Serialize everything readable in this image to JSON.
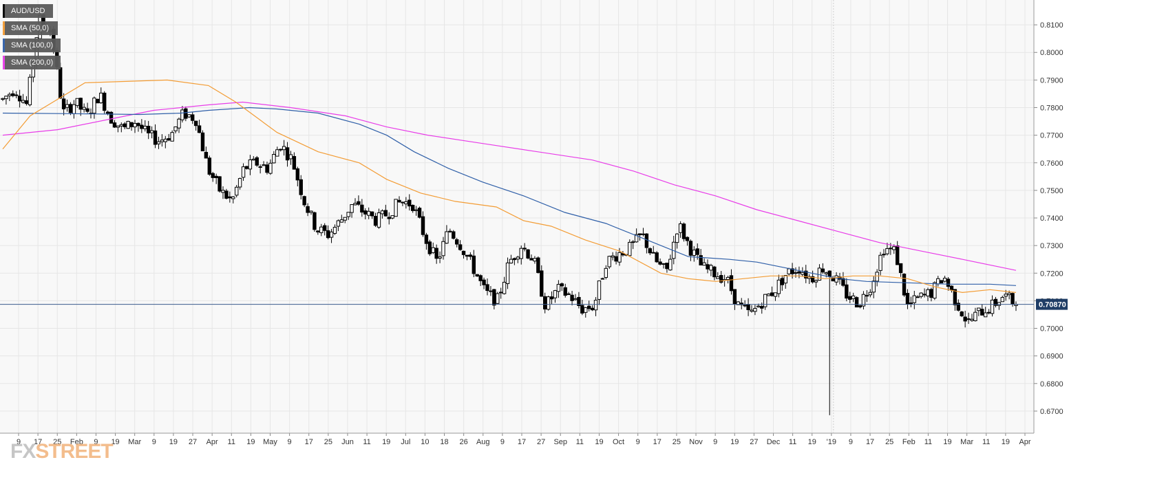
{
  "legend": {
    "symbol": "AUD/USD",
    "sma50": "SMA (50,0)",
    "sma100": "SMA (100,0)",
    "sma200": "SMA (200,0)"
  },
  "watermark": {
    "part1": "FX",
    "part2": "STREET"
  },
  "colors": {
    "sma50": "#f39c34",
    "sma100": "#2f5fa8",
    "sma200": "#e83ce8",
    "candle": "#000000",
    "last_price_line": "#3b5b8c",
    "grid": "#e6e6e6",
    "background": "#f8f8f8"
  },
  "chart_data": {
    "type": "candlestick",
    "symbol": "AUD/USD",
    "ylim": [
      0.662,
      0.819
    ],
    "y_ticks": [
      "0.8100",
      "0.8000",
      "0.7900",
      "0.7800",
      "0.7700",
      "0.7600",
      "0.7500",
      "0.7400",
      "0.7300",
      "0.7200",
      "0.7100",
      "0.7000",
      "0.6900",
      "0.6800",
      "0.6700"
    ],
    "x_tick_labels": [
      "9",
      "17",
      "25",
      "Feb",
      "9",
      "19",
      "Mar",
      "9",
      "19",
      "27",
      "Apr",
      "11",
      "19",
      "May",
      "9",
      "17",
      "25",
      "Jun",
      "11",
      "19",
      "Jul",
      "10",
      "18",
      "26",
      "Aug",
      "9",
      "17",
      "27",
      "Sep",
      "11",
      "19",
      "Oct",
      "9",
      "17",
      "25",
      "Nov",
      "9",
      "19",
      "27",
      "Dec",
      "11",
      "19",
      "'19",
      "9",
      "17",
      "25",
      "Feb",
      "11",
      "19",
      "Mar",
      "11",
      "19",
      "Apr"
    ],
    "last_price": 0.7087,
    "last_price_label": "0.70870",
    "anchors": [
      [
        0.783,
        0.787,
        0.781,
        0.812,
        0.808
      ],
      [
        0.778,
        0.782,
        0.777,
        0.785,
        0.776
      ],
      [
        0.772,
        0.775,
        0.77,
        0.768,
        0.7705
      ],
      [
        0.778,
        0.776,
        0.758,
        0.75,
        0.746
      ],
      [
        0.758,
        0.76,
        0.758,
        0.767,
        0.761
      ],
      [
        0.746,
        0.736,
        0.734,
        0.739,
        0.745
      ],
      [
        0.742,
        0.739,
        0.742,
        0.746,
        0.745
      ],
      [
        0.733,
        0.724,
        0.736,
        0.73,
        0.722
      ],
      [
        0.713,
        0.71,
        0.724,
        0.73,
        0.725
      ],
      [
        0.708,
        0.714,
        0.712,
        0.707,
        0.708
      ],
      [
        0.724,
        0.727,
        0.729,
        0.734,
        0.725
      ],
      [
        0.72,
        0.738,
        0.729,
        0.722,
        0.72
      ],
      [
        0.718,
        0.708,
        0.705,
        0.71,
        0.714
      ],
      [
        0.72,
        0.722,
        0.718,
        0.722,
        0.718
      ],
      [
        0.712,
        0.709,
        0.716,
        0.729,
        0.728
      ],
      [
        0.708,
        0.711,
        0.713,
        0.719,
        0.71
      ],
      [
        0.702,
        0.706,
        0.708,
        0.712,
        0.7087
      ]
    ],
    "volatility": 0.0022,
    "spike_low": 0.6685,
    "spike_index_after_jan": 2,
    "sma50_points": [
      [
        0,
        0.765
      ],
      [
        40,
        0.777
      ],
      [
        120,
        0.789
      ],
      [
        240,
        0.79
      ],
      [
        300,
        0.788
      ],
      [
        340,
        0.782
      ],
      [
        400,
        0.771
      ],
      [
        460,
        0.764
      ],
      [
        520,
        0.76
      ],
      [
        560,
        0.754
      ],
      [
        610,
        0.749
      ],
      [
        660,
        0.746
      ],
      [
        720,
        0.744
      ],
      [
        760,
        0.739
      ],
      [
        800,
        0.737
      ],
      [
        850,
        0.732
      ],
      [
        900,
        0.728
      ],
      [
        960,
        0.72
      ],
      [
        1000,
        0.718
      ],
      [
        1040,
        0.717
      ],
      [
        1080,
        0.718
      ],
      [
        1120,
        0.719
      ],
      [
        1160,
        0.719
      ],
      [
        1200,
        0.718
      ],
      [
        1240,
        0.719
      ],
      [
        1280,
        0.719
      ],
      [
        1320,
        0.718
      ],
      [
        1360,
        0.715
      ],
      [
        1400,
        0.713
      ],
      [
        1440,
        0.714
      ],
      [
        1478,
        0.713
      ]
    ],
    "sma100_points": [
      [
        0,
        0.778
      ],
      [
        100,
        0.7778
      ],
      [
        200,
        0.7775
      ],
      [
        260,
        0.778
      ],
      [
        300,
        0.779
      ],
      [
        360,
        0.78
      ],
      [
        400,
        0.7795
      ],
      [
        460,
        0.778
      ],
      [
        520,
        0.774
      ],
      [
        560,
        0.77
      ],
      [
        600,
        0.764
      ],
      [
        650,
        0.758
      ],
      [
        700,
        0.753
      ],
      [
        760,
        0.748
      ],
      [
        820,
        0.742
      ],
      [
        880,
        0.738
      ],
      [
        940,
        0.732
      ],
      [
        1000,
        0.726
      ],
      [
        1060,
        0.725
      ],
      [
        1100,
        0.724
      ],
      [
        1140,
        0.722
      ],
      [
        1180,
        0.72
      ],
      [
        1220,
        0.718
      ],
      [
        1260,
        0.717
      ],
      [
        1320,
        0.7165
      ],
      [
        1380,
        0.716
      ],
      [
        1440,
        0.716
      ],
      [
        1478,
        0.7155
      ]
    ],
    "sma200_points": [
      [
        0,
        0.77
      ],
      [
        80,
        0.772
      ],
      [
        160,
        0.776
      ],
      [
        220,
        0.779
      ],
      [
        300,
        0.781
      ],
      [
        350,
        0.782
      ],
      [
        420,
        0.78
      ],
      [
        500,
        0.777
      ],
      [
        560,
        0.773
      ],
      [
        620,
        0.77
      ],
      [
        700,
        0.767
      ],
      [
        780,
        0.764
      ],
      [
        860,
        0.761
      ],
      [
        920,
        0.757
      ],
      [
        980,
        0.752
      ],
      [
        1040,
        0.748
      ],
      [
        1100,
        0.743
      ],
      [
        1160,
        0.739
      ],
      [
        1220,
        0.735
      ],
      [
        1280,
        0.731
      ],
      [
        1340,
        0.728
      ],
      [
        1400,
        0.725
      ],
      [
        1478,
        0.721
      ]
    ]
  }
}
